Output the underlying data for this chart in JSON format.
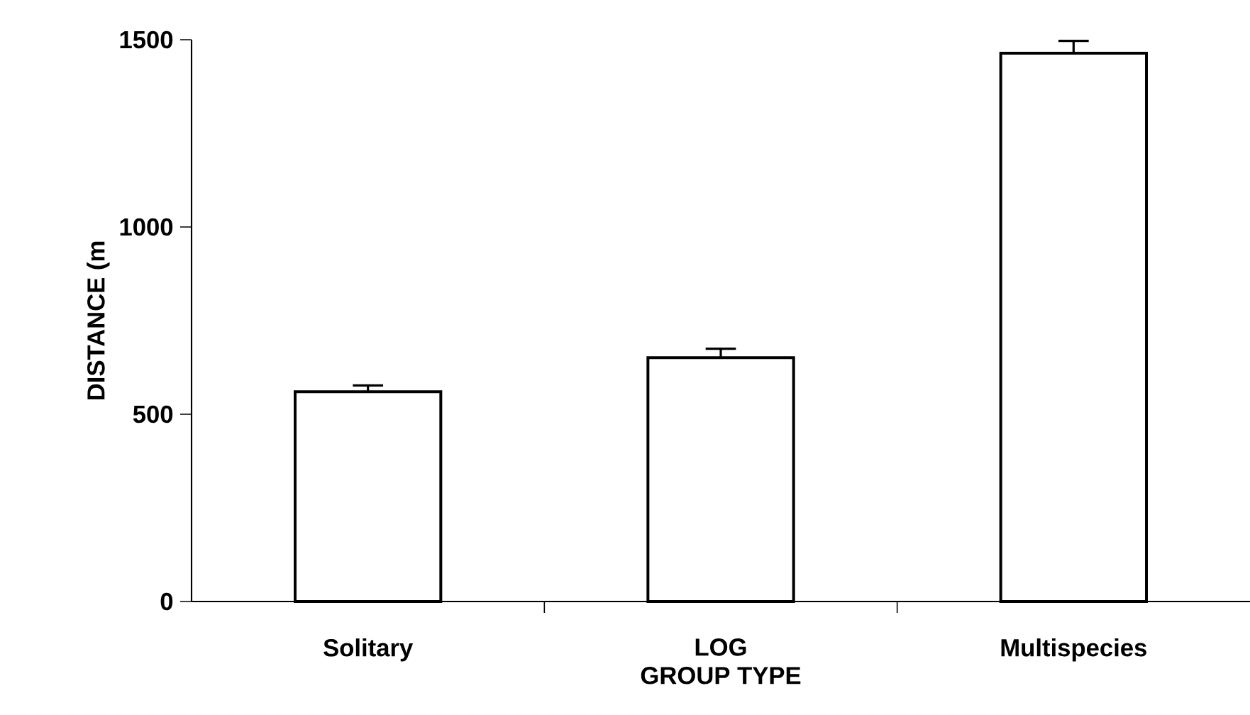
{
  "chart_data": {
    "type": "bar",
    "xlabel": "GROUP TYPE",
    "ylabel": "DISTANCE (m",
    "categories": [
      "Solitary",
      "LOG",
      "Multispecies"
    ],
    "values": [
      560,
      651,
      1464
    ],
    "errors": [
      17,
      24,
      33
    ],
    "color": "#ffffff",
    "ylim": [
      0,
      1500
    ],
    "yticks": [
      0,
      500,
      1000,
      1500
    ],
    "grid": false
  }
}
